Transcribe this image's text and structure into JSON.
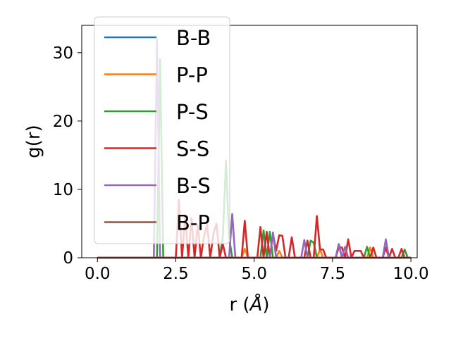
{
  "chart_data": {
    "type": "line",
    "xlabel": "r (",
    "xlabel_symbol": "Å",
    "xlabel_suffix": ")",
    "ylabel": "g(r)",
    "xlim": [
      -0.5,
      10.2
    ],
    "ylim": [
      0,
      34
    ],
    "xticks": [
      0,
      2.5,
      5,
      7.5,
      10
    ],
    "xtick_labels": [
      "0.0",
      "2.5",
      "5.0",
      "7.5",
      "10.0"
    ],
    "yticks": [
      0,
      10,
      20,
      30
    ],
    "ytick_labels": [
      "0",
      "10",
      "20",
      "30"
    ],
    "grid": false,
    "legend_position": "upper-left",
    "series": [
      {
        "name": "B-B",
        "color": "#1f77b4",
        "x": [
          0,
          10
        ],
        "y": [
          0,
          0
        ]
      },
      {
        "name": "P-P",
        "color": "#ff7f0e",
        "x": [
          0,
          4.6,
          4.7,
          4.8,
          5.7,
          5.8,
          5.9,
          7.0,
          7.1,
          7.2,
          8.6,
          8.7,
          8.8,
          10
        ],
        "y": [
          0,
          0,
          1.3,
          0,
          0,
          1.0,
          0,
          0,
          1.2,
          0,
          0,
          1.5,
          0,
          0
        ]
      },
      {
        "name": "P-S",
        "color": "#2ca02c",
        "x": [
          0,
          1.9,
          2.0,
          2.1,
          3.9,
          4.0,
          4.1,
          4.2,
          4.3,
          5.2,
          5.3,
          5.4,
          5.5,
          5.6,
          6.7,
          6.8,
          6.9,
          7.0,
          7.6,
          7.7,
          7.8,
          8.5,
          8.6,
          8.7,
          9.7,
          9.8,
          9.9
        ],
        "y": [
          0,
          0,
          29,
          0,
          0,
          3,
          14.2,
          3,
          0,
          0,
          4,
          0,
          3.8,
          0,
          0,
          2.5,
          2.2,
          0,
          0,
          2,
          0,
          0,
          1.6,
          0,
          0,
          1.2,
          0
        ]
      },
      {
        "name": "S-S",
        "color": "#d62728",
        "x": [
          0,
          2.5,
          2.6,
          2.7,
          2.8,
          2.9,
          3.0,
          3.1,
          3.2,
          3.3,
          3.4,
          3.5,
          3.6,
          3.7,
          3.8,
          3.9,
          4.0,
          4.1,
          4.2,
          4.3,
          4.4,
          4.5,
          4.6,
          4.7,
          4.8,
          4.9,
          5.0,
          5.1,
          5.2,
          5.3,
          5.4,
          5.5,
          5.6,
          5.7,
          5.8,
          5.9,
          6.0,
          6.1,
          6.2,
          6.3,
          6.4,
          6.5,
          6.6,
          6.7,
          6.8,
          6.9,
          7.0,
          7.1,
          7.2,
          7.3,
          7.4,
          7.5,
          7.6,
          7.7,
          7.8,
          7.9,
          8.0,
          8.1,
          8.2,
          8.3,
          8.4,
          8.5,
          8.6,
          8.7,
          8.8,
          8.9,
          9.0,
          9.1,
          9.2,
          9.3,
          9.4,
          9.5,
          9.6,
          9.7,
          9.8,
          9.9
        ],
        "y": [
          0,
          0,
          8.5,
          0,
          6.2,
          0,
          5.8,
          0,
          4.8,
          0,
          3.2,
          4.9,
          0,
          3.5,
          5.0,
          0,
          2.0,
          0,
          0,
          0,
          0,
          0,
          0,
          5.4,
          0,
          0,
          0,
          0,
          4.5,
          0,
          3.8,
          0,
          3.5,
          1.0,
          3.3,
          3.2,
          0,
          0,
          3.0,
          0,
          0,
          0,
          0,
          2.5,
          0,
          0,
          6.1,
          1.2,
          1.2,
          0,
          0,
          0,
          0,
          1.5,
          1.5,
          0,
          2.7,
          0,
          1.0,
          1.0,
          1.0,
          0,
          0,
          0,
          1.5,
          0,
          0,
          0,
          1.5,
          0,
          1.3,
          0,
          0,
          1.3,
          0,
          0
        ]
      },
      {
        "name": "B-S",
        "color": "#9467bd",
        "x": [
          0,
          1.8,
          1.9,
          2.0,
          2.1,
          4.2,
          4.3,
          4.4,
          5.5,
          5.6,
          5.7,
          6.5,
          6.6,
          6.7,
          7.6,
          7.7,
          7.8,
          7.9,
          8.0,
          9.1,
          9.2,
          9.3,
          10
        ],
        "y": [
          0,
          0,
          32,
          0,
          0,
          0,
          6.4,
          0,
          0,
          3.7,
          0,
          0,
          2.6,
          0,
          0,
          2.0,
          0,
          1.6,
          0,
          0,
          2.7,
          0,
          0
        ]
      },
      {
        "name": "B-P",
        "color": "#8c564b",
        "x": [
          0,
          10
        ],
        "y": [
          0,
          0
        ]
      }
    ]
  }
}
